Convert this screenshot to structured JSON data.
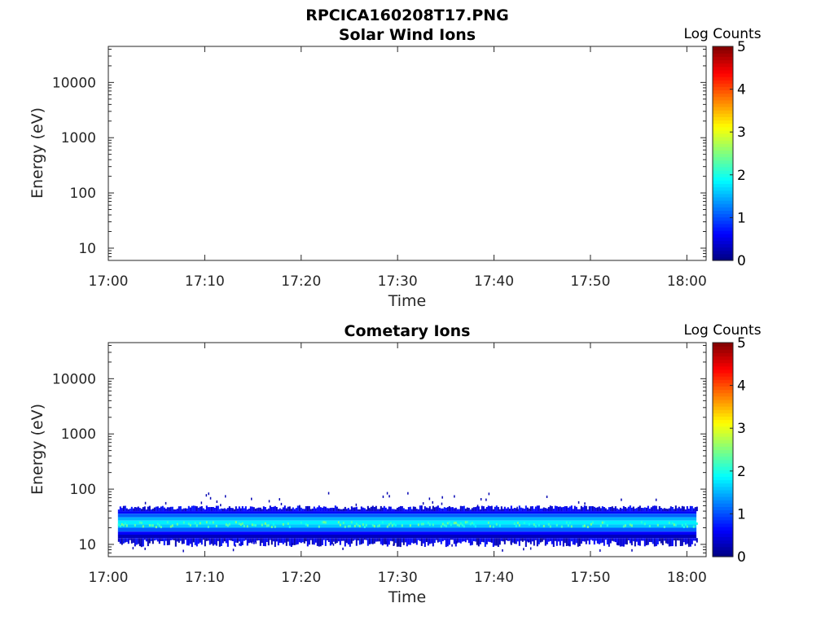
{
  "figure": {
    "title": "RPCICA160208T17.PNG"
  },
  "colorbar": {
    "label": "Log Counts",
    "ticks": [
      "5",
      "4",
      "3",
      "2",
      "1",
      "0"
    ],
    "range": [
      0,
      5
    ],
    "colormap": "jet"
  },
  "chart_data": [
    {
      "type": "heatmap",
      "title": "Solar Wind Ions",
      "xlabel": "Time",
      "ylabel": "Energy (eV)",
      "x_ticks": [
        "17:00",
        "17:10",
        "17:20",
        "17:30",
        "17:40",
        "17:50",
        "18:00"
      ],
      "y_ticks": [
        "10",
        "100",
        "1000",
        "10000"
      ],
      "y_scale": "log",
      "xlim": [
        "17:00",
        "18:02"
      ],
      "ylim": [
        6,
        45000
      ],
      "z_label": "Log Counts",
      "zlim": [
        0,
        5
      ],
      "bands": []
    },
    {
      "type": "heatmap",
      "title": "Cometary Ions",
      "xlabel": "Time",
      "ylabel": "Energy (eV)",
      "x_ticks": [
        "17:00",
        "17:10",
        "17:20",
        "17:30",
        "17:40",
        "17:50",
        "18:00"
      ],
      "y_ticks": [
        "10",
        "100",
        "1000",
        "10000"
      ],
      "y_scale": "log",
      "xlim": [
        "17:00",
        "18:02"
      ],
      "ylim": [
        6,
        45000
      ],
      "z_label": "Log Counts",
      "zlim": [
        0,
        5
      ],
      "data_time_range": [
        "17:01",
        "18:01"
      ],
      "bands": [
        {
          "energy_range_eV": [
            36,
            40
          ],
          "log_counts": 0.6
        },
        {
          "energy_range_eV": [
            31,
            36
          ],
          "log_counts": 1.1
        },
        {
          "energy_range_eV": [
            27,
            31
          ],
          "log_counts": 1.5
        },
        {
          "energy_range_eV": [
            23,
            27
          ],
          "log_counts": 1.8
        },
        {
          "energy_range_eV": [
            20,
            23
          ],
          "log_counts": 1.6
        },
        {
          "energy_range_eV": [
            17,
            20
          ],
          "log_counts": 1.1
        },
        {
          "energy_range_eV": [
            15,
            17
          ],
          "log_counts": 0.6
        },
        {
          "energy_range_eV": [
            13,
            15
          ],
          "log_counts": 0.3
        }
      ]
    }
  ]
}
